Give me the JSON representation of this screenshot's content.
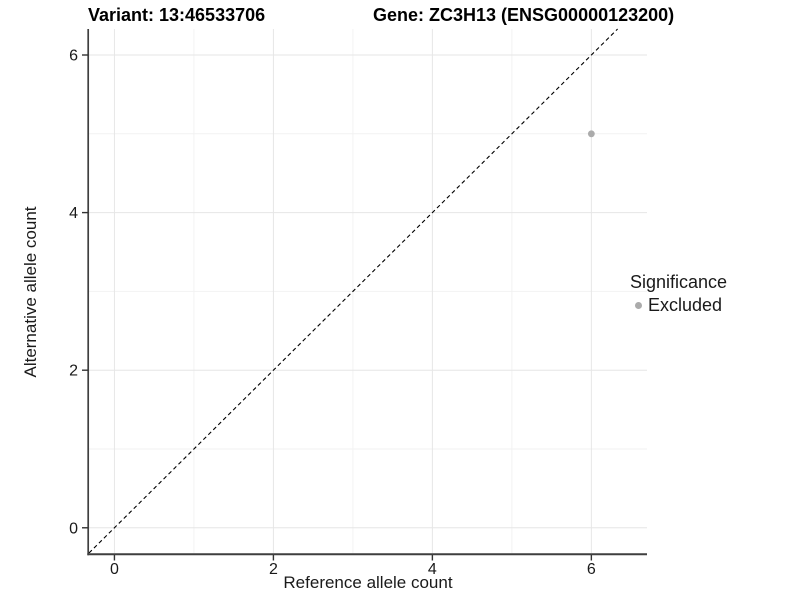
{
  "titles": {
    "variant": "Variant: 13:46533706",
    "gene": "Gene: ZC3H13 (ENSG00000123200)"
  },
  "chart_data": {
    "type": "scatter",
    "title": "Variant: 13:46533706  /  Gene: ZC3H13 (ENSG00000123200)",
    "xlabel": "Reference allele count",
    "ylabel": "Alternative allele count",
    "xlim": [
      -0.32,
      6.7
    ],
    "ylim": [
      -0.32,
      6.33
    ],
    "x_major_ticks": [
      0,
      2,
      4,
      6
    ],
    "y_major_ticks": [
      0,
      2,
      4,
      6
    ],
    "x_minor_ticks": [
      1,
      3,
      5
    ],
    "y_minor_ticks": [
      1,
      3,
      5
    ],
    "grid": true,
    "points": [
      {
        "x": 6,
        "y": 5,
        "series": "Excluded"
      }
    ],
    "reference_line": {
      "type": "identity",
      "slope": 1,
      "intercept": 0,
      "style": "dashed"
    },
    "legend": {
      "title": "Significance",
      "position": "right",
      "entries": [
        {
          "label": "Excluded",
          "color": "#ababab",
          "marker": "circle"
        }
      ]
    },
    "colors": {
      "point": "#ababab",
      "grid_major": "#e6e6e6",
      "grid_minor": "#f2f2f2",
      "axis": "#3f3f3f",
      "tick": "#333333",
      "reference_line": "#000000",
      "text": "#1a1a1a",
      "background": "#ffffff"
    }
  }
}
